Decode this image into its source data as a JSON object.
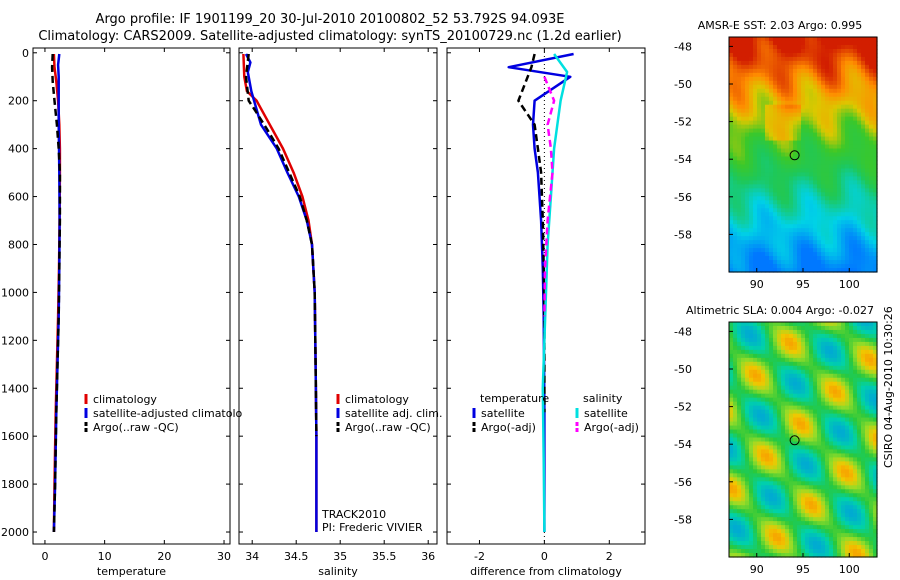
{
  "title": {
    "line1": "Argo profile: IF 1901199_20 30-Jul-2010 20100802_52 53.792S 94.093E",
    "line2": "Climatology: CARS2009. Satellite-adjusted climatology: synTS_20100729.nc (1.2d earlier)"
  },
  "colors": {
    "climatology": "#e00000",
    "satellite": "#0000e0",
    "argo": "#000000",
    "satellite_sal": "#00e0e0",
    "argo_sal": "#ff00ff"
  },
  "chart_data": [
    {
      "type": "line",
      "id": "temperature",
      "xlabel": "temperature",
      "xlim": [
        -2,
        31
      ],
      "xticks": [
        0,
        10,
        20,
        30
      ],
      "ylim": [
        2050,
        -20
      ],
      "yticks": [
        0,
        200,
        400,
        600,
        800,
        1000,
        1200,
        1400,
        1600,
        1800,
        2000
      ],
      "series": [
        {
          "name": "climatology",
          "style": "solid",
          "color": "#e00000",
          "x": [
            1.5,
            1.6,
            1.9,
            2.2,
            2.4,
            2.5,
            2.5,
            2.45,
            2.35,
            2.2,
            2.0,
            1.8,
            1.6,
            1.5
          ],
          "y": [
            5,
            60,
            120,
            200,
            300,
            400,
            500,
            700,
            900,
            1100,
            1300,
            1500,
            1800,
            2000
          ]
        },
        {
          "name": "satellite-adjusted climatology",
          "style": "solid",
          "color": "#0000e0",
          "x": [
            2.4,
            2.2,
            2.3,
            2.3,
            2.3,
            2.35,
            2.4,
            2.45,
            2.4,
            2.3,
            2.1,
            1.9,
            1.7,
            1.5
          ],
          "y": [
            5,
            50,
            100,
            200,
            300,
            400,
            500,
            700,
            900,
            1100,
            1300,
            1500,
            1800,
            2000
          ]
        },
        {
          "name": "Argo(..raw -QC)",
          "style": "dashed",
          "color": "#000000",
          "x": [
            1.3,
            1.2,
            1.3,
            1.6,
            2.0,
            2.3,
            2.5,
            2.5,
            2.4,
            2.3,
            2.1,
            1.9,
            1.7,
            1.5
          ],
          "y": [
            5,
            60,
            120,
            200,
            300,
            400,
            500,
            700,
            900,
            1100,
            1300,
            1500,
            1800,
            2000
          ]
        }
      ],
      "legend": [
        "climatology",
        "satellite-adjusted climatolo",
        "Argo(..raw -QC)"
      ]
    },
    {
      "type": "line",
      "id": "salinity",
      "xlabel": "salinity",
      "xlim": [
        33.85,
        36.1
      ],
      "xticks": [
        34,
        34.5,
        35,
        35.5,
        36
      ],
      "ylim": [
        2050,
        -20
      ],
      "yticks": [
        0,
        200,
        400,
        600,
        800,
        1000,
        1200,
        1400,
        1600,
        1800,
        2000
      ],
      "series": [
        {
          "name": "climatology",
          "style": "solid",
          "color": "#e00000",
          "x": [
            33.9,
            33.91,
            33.94,
            34.05,
            34.2,
            34.35,
            34.47,
            34.57,
            34.64,
            34.68,
            34.71,
            34.72,
            34.73,
            34.73
          ],
          "y": [
            5,
            100,
            160,
            200,
            300,
            400,
            500,
            600,
            700,
            800,
            1000,
            1300,
            1600,
            2000
          ]
        },
        {
          "name": "satellite adj. clim.",
          "style": "solid",
          "color": "#0000e0",
          "x": [
            33.93,
            33.98,
            33.95,
            33.99,
            34.1,
            34.28,
            34.4,
            34.53,
            34.62,
            34.68,
            34.71,
            34.72,
            34.73,
            34.73
          ],
          "y": [
            5,
            40,
            80,
            160,
            300,
            400,
            500,
            600,
            700,
            800,
            1000,
            1300,
            1600,
            2000
          ]
        },
        {
          "name": "Argo(..raw -QC)",
          "style": "dashed",
          "color": "#000000",
          "x": [
            33.96,
            33.93,
            33.96,
            34.05,
            34.17,
            34.3,
            34.42,
            34.54,
            34.62,
            34.68,
            34.71,
            34.72,
            34.73
          ],
          "y": [
            5,
            100,
            200,
            250,
            320,
            400,
            500,
            600,
            700,
            800,
            1000,
            1300,
            1600
          ]
        }
      ],
      "legend": [
        "climatology",
        "satellite adj. clim.",
        "Argo(..raw -QC)"
      ],
      "annotation": [
        "TRACK2010",
        "PI: Frederic VIVIER"
      ]
    },
    {
      "type": "line",
      "id": "difference",
      "xlabel": "difference from climatology",
      "xlim": [
        -3,
        3.1
      ],
      "xticks": [
        -2,
        0,
        2
      ],
      "ylim": [
        2050,
        -20
      ],
      "yticks": [
        0,
        200,
        400,
        600,
        800,
        1000,
        1200,
        1400,
        1600,
        1800,
        2000
      ],
      "series": [
        {
          "name": "temperature satellite",
          "style": "solid",
          "color": "#0000e0",
          "x": [
            0.9,
            -1.1,
            0.8,
            -0.3,
            -0.35,
            -0.3,
            -0.2,
            -0.1,
            -0.05,
            -0.02,
            0.0,
            0.0
          ],
          "y": [
            5,
            60,
            100,
            200,
            300,
            400,
            500,
            700,
            900,
            1100,
            1500,
            2000
          ]
        },
        {
          "name": "temperature Argo(-adj)",
          "style": "dashed",
          "color": "#000000",
          "x": [
            -0.3,
            -0.4,
            -0.8,
            -0.3,
            -0.2,
            -0.1,
            -0.05,
            -0.02,
            0.0,
            0.0
          ],
          "y": [
            5,
            60,
            200,
            300,
            400,
            500,
            700,
            900,
            1100,
            1500
          ]
        },
        {
          "name": "salinity satellite",
          "style": "solid",
          "color": "#00e0e0",
          "x": [
            0.3,
            0.7,
            0.5,
            0.3,
            0.2,
            0.1,
            0.05,
            0.0,
            -0.05,
            -0.02,
            0.0
          ],
          "y": [
            5,
            80,
            200,
            400,
            600,
            800,
            1000,
            1200,
            1400,
            1700,
            2000
          ]
        },
        {
          "name": "salinity Argo(-adj)",
          "style": "dashed",
          "color": "#ff00ff",
          "x": [
            0.0,
            0.3,
            0.1,
            0.2,
            0.25,
            0.1,
            0.02,
            0.0
          ],
          "y": [
            100,
            200,
            300,
            400,
            500,
            700,
            900,
            1100
          ]
        }
      ],
      "legend": {
        "temperature_header": "temperature",
        "salinity_header": "salinity",
        "items": [
          "satellite",
          "Argo(-adj)",
          "satellite",
          "Argo(-adj)"
        ]
      }
    },
    {
      "type": "heatmap",
      "id": "sst_map",
      "title": "AMSR-E SST: 2.03 Argo: 0.995",
      "xlim": [
        87,
        103
      ],
      "ylim": [
        -60,
        -47.5
      ],
      "xticks": [
        90,
        95,
        100
      ],
      "yticks": [
        -48,
        -50,
        -52,
        -54,
        -56,
        -58
      ],
      "float_location": {
        "lon": 94.093,
        "lat": -53.792
      }
    },
    {
      "type": "heatmap",
      "id": "sla_map",
      "title": "Altimetric SLA: 0.004 Argo: -0.027",
      "xlim": [
        87,
        103
      ],
      "ylim": [
        -60,
        -47.5
      ],
      "xticks": [
        90,
        95,
        100
      ],
      "yticks": [
        -48,
        -50,
        -52,
        -54,
        -56,
        -58
      ],
      "float_location": {
        "lon": 94.093,
        "lat": -53.792
      }
    }
  ],
  "side_note": "CSIRO 04-Aug-2010 10:30:26"
}
